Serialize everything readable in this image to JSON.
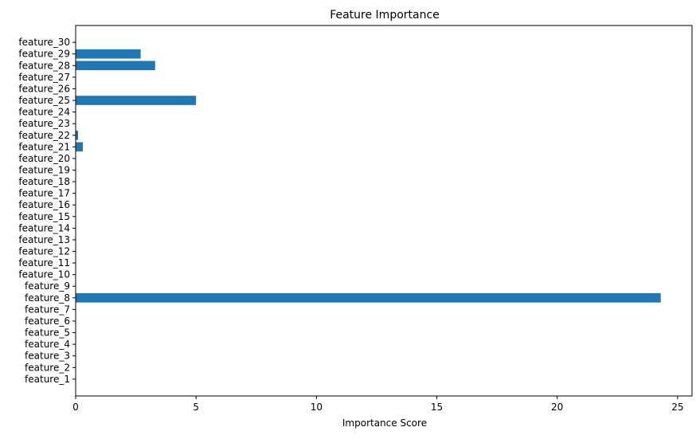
{
  "chart_data": {
    "type": "bar",
    "orientation": "horizontal",
    "title": "Feature Importance",
    "xlabel": "Importance Score",
    "ylabel": "",
    "xlim": [
      0,
      25.6
    ],
    "xticks": [
      0,
      5,
      10,
      15,
      20,
      25
    ],
    "grid": false,
    "legend": "none",
    "bar_color": "#1f77b4",
    "categories": [
      "feature_1",
      "feature_2",
      "feature_3",
      "feature_4",
      "feature_5",
      "feature_6",
      "feature_7",
      "feature_8",
      "feature_9",
      "feature_10",
      "feature_11",
      "feature_12",
      "feature_13",
      "feature_14",
      "feature_15",
      "feature_16",
      "feature_17",
      "feature_18",
      "feature_19",
      "feature_20",
      "feature_21",
      "feature_22",
      "feature_23",
      "feature_24",
      "feature_25",
      "feature_26",
      "feature_27",
      "feature_28",
      "feature_29",
      "feature_30"
    ],
    "values": [
      0,
      0,
      0,
      0,
      0,
      0,
      0,
      24.3,
      0,
      0,
      0,
      0,
      0,
      0,
      0,
      0,
      0,
      0,
      0,
      0,
      0.3,
      0.1,
      0,
      0,
      5.0,
      0,
      0,
      3.3,
      2.7,
      0
    ]
  }
}
